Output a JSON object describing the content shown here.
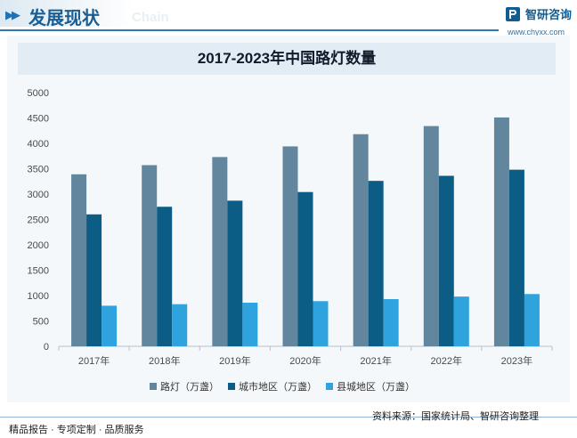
{
  "header": {
    "title": "发展现状",
    "ghost_text": "Chain",
    "logo_name": "智研咨询",
    "logo_url": "www.chyxx.com"
  },
  "colors": {
    "series_1": "#62869e",
    "series_2": "#0c5d86",
    "series_3": "#2ea3dd",
    "grid": "#e1e5ea",
    "header_accent": "#1a5e94"
  },
  "chart_data": {
    "type": "bar",
    "title": "2017-2023年中国路灯数量",
    "categories": [
      "2017年",
      "2018年",
      "2019年",
      "2020年",
      "2021年",
      "2022年",
      "2023年"
    ],
    "series": [
      {
        "name": "路灯（万盏）",
        "values": [
          3390,
          3570,
          3730,
          3940,
          4180,
          4340,
          4510
        ]
      },
      {
        "name": "城市地区（万盏）",
        "values": [
          2600,
          2750,
          2870,
          3040,
          3260,
          3360,
          3480
        ]
      },
      {
        "name": "县城地区（万盏）",
        "values": [
          800,
          830,
          860,
          890,
          930,
          980,
          1030
        ]
      }
    ],
    "yticks": [
      "0",
      "500",
      "1000",
      "1500",
      "2000",
      "2500",
      "3000",
      "3500",
      "4000",
      "4500",
      "5000"
    ],
    "ylim": [
      0,
      5000
    ],
    "grid": false,
    "legend": "bottom"
  },
  "footer": {
    "left": "精品报告 · 专项定制 · 品质服务",
    "right": "资料来源：国家统计局、智研咨询整理"
  }
}
